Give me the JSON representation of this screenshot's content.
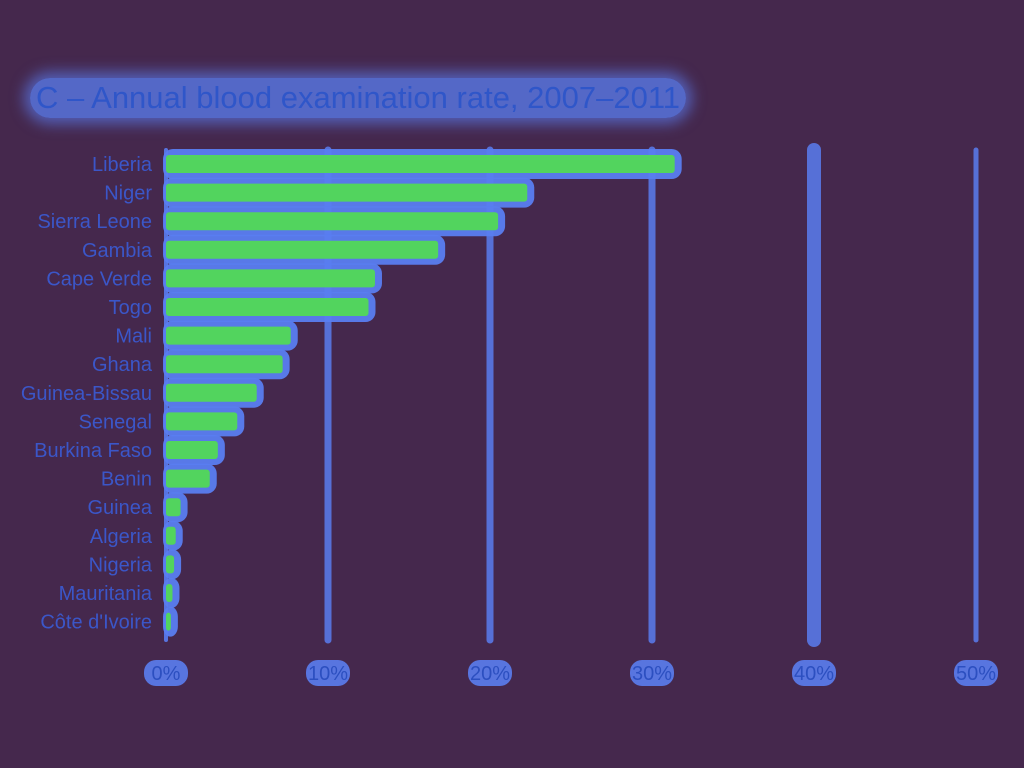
{
  "chart_data": {
    "type": "bar",
    "orientation": "horizontal",
    "title": "C – Annual blood examination rate, 2007–2011",
    "categories": [
      "Liberia",
      "Niger",
      "Sierra Leone",
      "Gambia",
      "Cape Verde",
      "Togo",
      "Mali",
      "Ghana",
      "Guinea-Bissau",
      "Senegal",
      "Burkina Faso",
      "Benin",
      "Guinea",
      "Algeria",
      "Nigeria",
      "Mauritania",
      "Côte d'Ivoire"
    ],
    "values": [
      31.4,
      22.3,
      20.5,
      16.8,
      12.9,
      12.5,
      7.7,
      7.2,
      5.6,
      4.4,
      3.2,
      2.7,
      0.9,
      0.6,
      0.5,
      0.4,
      0.3
    ],
    "unit": "%",
    "xlim": [
      0,
      50
    ],
    "xticks": [
      0,
      10,
      20,
      30,
      40,
      50
    ],
    "xtick_labels": [
      "0%",
      "10%",
      "20%",
      "30%",
      "40%",
      "50%"
    ],
    "grid": true,
    "xlabel": "",
    "ylabel": ""
  },
  "colors": {
    "background": "#45284d",
    "bar_fill": "#52d45e",
    "bar_glow": "#5a7df0",
    "gridline": "#5a7df0",
    "label": "#3b56c8"
  }
}
